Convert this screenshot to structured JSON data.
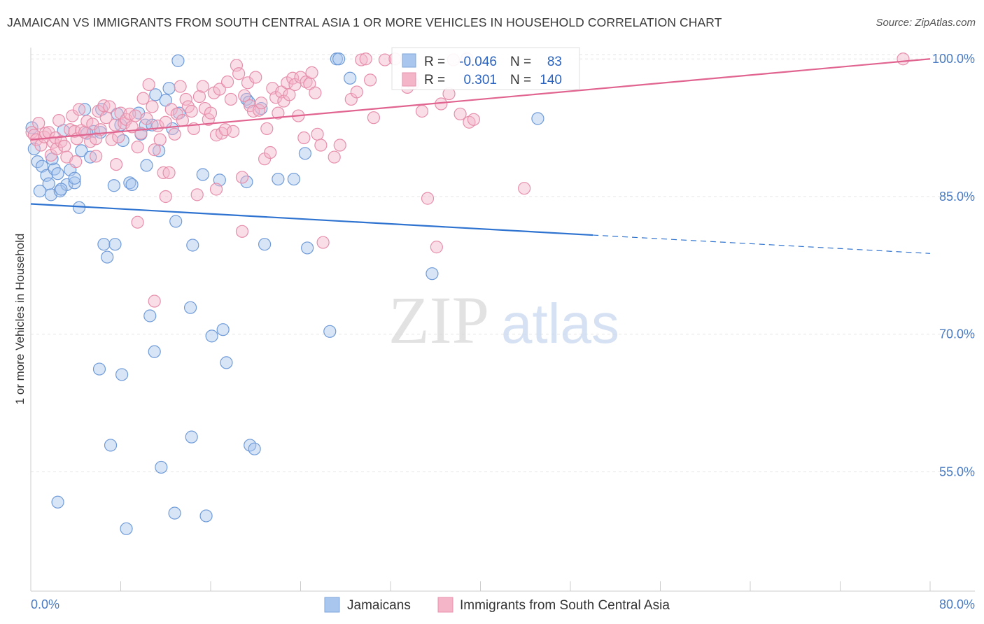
{
  "title": "JAMAICAN VS IMMIGRANTS FROM SOUTH CENTRAL ASIA 1 OR MORE VEHICLES IN HOUSEHOLD CORRELATION CHART",
  "source": "Source: ZipAtlas.com",
  "watermark": {
    "zip": "ZIP",
    "atlas": "atlas"
  },
  "colors": {
    "blue": "#2f73d0",
    "blue_fill": "#a9c6ee",
    "pink": "#e0648f",
    "pink_fill": "#f4b5c9",
    "tick": "#4a7bc2"
  },
  "legend": {
    "blue": {
      "r_label": "R =",
      "r_value": "-0.046",
      "n_label": "N =",
      "n_value": "83"
    },
    "pink": {
      "r_label": "R =",
      "r_value": "0.301",
      "n_label": "N =",
      "n_value": "140"
    }
  },
  "chart_data": {
    "type": "scatter",
    "title": "JAMAICAN VS IMMIGRANTS FROM SOUTH CENTRAL ASIA 1 OR MORE VEHICLES IN HOUSEHOLD CORRELATION CHART",
    "ylabel": "1 or more Vehicles in Household",
    "xlabel": "",
    "xlim": [
      0,
      80
    ],
    "ylim": [
      42,
      102
    ],
    "x_tick_labels": [
      "0.0%",
      "80.0%"
    ],
    "y_ticks": [
      55,
      70,
      85,
      100
    ],
    "y_tick_labels": [
      "55.0%",
      "70.0%",
      "85.0%",
      "100.0%"
    ],
    "grid": true,
    "legend_position": "bottom-center",
    "series": [
      {
        "name": "Jamaicans",
        "trend": {
          "x_start": 0,
          "y_start": 84.2,
          "x_solid_end": 50,
          "y_solid_end": 80.8,
          "x_end": 80,
          "y_end": 78.8
        },
        "points": [
          [
            0.1,
            92.5
          ],
          [
            0.3,
            90.2
          ],
          [
            0.6,
            88.8
          ],
          [
            0.8,
            85.6
          ],
          [
            1.0,
            88.3
          ],
          [
            1.4,
            87.3
          ],
          [
            1.8,
            85.2
          ],
          [
            2.1,
            88.0
          ],
          [
            2.4,
            87.5
          ],
          [
            2.6,
            85.6
          ],
          [
            2.9,
            92.2
          ],
          [
            3.2,
            86.3
          ],
          [
            3.5,
            87.9
          ],
          [
            3.9,
            86.5
          ],
          [
            4.3,
            83.8
          ],
          [
            4.5,
            90.0
          ],
          [
            4.8,
            94.5
          ],
          [
            5.3,
            89.3
          ],
          [
            5.6,
            92.1
          ],
          [
            6.2,
            92.0
          ],
          [
            6.3,
            94.5
          ],
          [
            6.5,
            79.8
          ],
          [
            6.8,
            78.4
          ],
          [
            7.4,
            86.2
          ],
          [
            7.5,
            79.8
          ],
          [
            7.7,
            94.0
          ],
          [
            8.0,
            92.8
          ],
          [
            8.2,
            91.1
          ],
          [
            8.8,
            86.5
          ],
          [
            9.0,
            86.3
          ],
          [
            9.6,
            94.1
          ],
          [
            9.8,
            91.8
          ],
          [
            10.2,
            92.8
          ],
          [
            10.3,
            88.4
          ],
          [
            10.6,
            72.0
          ],
          [
            10.8,
            92.8
          ],
          [
            11.0,
            68.1
          ],
          [
            11.1,
            96.1
          ],
          [
            11.4,
            90.0
          ],
          [
            11.6,
            55.5
          ],
          [
            12.0,
            95.5
          ],
          [
            12.3,
            96.8
          ],
          [
            12.6,
            92.4
          ],
          [
            12.8,
            50.5
          ],
          [
            12.9,
            82.3
          ],
          [
            13.1,
            99.8
          ],
          [
            13.2,
            94.1
          ],
          [
            14.2,
            72.9
          ],
          [
            14.3,
            58.8
          ],
          [
            14.4,
            79.7
          ],
          [
            15.3,
            87.4
          ],
          [
            15.6,
            50.2
          ],
          [
            16.1,
            69.8
          ],
          [
            16.8,
            86.8
          ],
          [
            17.1,
            70.5
          ],
          [
            17.4,
            66.9
          ],
          [
            19.2,
            86.6
          ],
          [
            19.2,
            95.6
          ],
          [
            19.4,
            95.3
          ],
          [
            19.5,
            57.9
          ],
          [
            19.9,
            57.5
          ],
          [
            20.5,
            94.6
          ],
          [
            20.8,
            79.8
          ],
          [
            22.0,
            86.9
          ],
          [
            23.4,
            86.9
          ],
          [
            24.4,
            89.7
          ],
          [
            24.6,
            79.4
          ],
          [
            26.6,
            70.3
          ],
          [
            27.2,
            100.0
          ],
          [
            27.4,
            100.0
          ],
          [
            28.4,
            97.9
          ],
          [
            35.7,
            76.6
          ],
          [
            45.1,
            93.5
          ],
          [
            3.9,
            87.0
          ],
          [
            8.1,
            65.6
          ],
          [
            6.1,
            66.2
          ],
          [
            2.4,
            51.7
          ],
          [
            7.1,
            57.9
          ],
          [
            8.5,
            48.8
          ],
          [
            1.6,
            86.4
          ],
          [
            1.9,
            89.1
          ],
          [
            2.7,
            85.8
          ],
          [
            5.0,
            91.9
          ]
        ]
      },
      {
        "name": "Immigrants from South Central Asia",
        "trend": {
          "x_start": 0,
          "y_start": 91.2,
          "x_end": 80,
          "y_end": 100.0
        },
        "points": [
          [
            0.1,
            92.0
          ],
          [
            0.3,
            91.7
          ],
          [
            0.5,
            91.2
          ],
          [
            0.7,
            93.0
          ],
          [
            0.9,
            90.6
          ],
          [
            1.2,
            91.5
          ],
          [
            1.3,
            91.9
          ],
          [
            1.6,
            92.0
          ],
          [
            1.8,
            89.5
          ],
          [
            2.0,
            90.9
          ],
          [
            2.2,
            91.4
          ],
          [
            2.3,
            90.2
          ],
          [
            2.5,
            93.3
          ],
          [
            2.7,
            91.0
          ],
          [
            3.0,
            90.5
          ],
          [
            3.2,
            89.3
          ],
          [
            3.5,
            92.3
          ],
          [
            3.7,
            93.8
          ],
          [
            3.9,
            92.1
          ],
          [
            4.1,
            91.3
          ],
          [
            4.3,
            94.5
          ],
          [
            4.5,
            92.2
          ],
          [
            4.8,
            92.0
          ],
          [
            5.0,
            93.2
          ],
          [
            5.3,
            91.0
          ],
          [
            5.5,
            92.9
          ],
          [
            5.8,
            89.4
          ],
          [
            6.0,
            94.3
          ],
          [
            6.2,
            92.3
          ],
          [
            6.5,
            94.9
          ],
          [
            6.7,
            93.6
          ],
          [
            7.0,
            94.8
          ],
          [
            7.2,
            91.2
          ],
          [
            7.5,
            92.8
          ],
          [
            7.8,
            91.5
          ],
          [
            8.0,
            94.1
          ],
          [
            8.3,
            93.0
          ],
          [
            8.5,
            93.4
          ],
          [
            8.8,
            94.0
          ],
          [
            9.0,
            92.6
          ],
          [
            9.3,
            93.8
          ],
          [
            9.5,
            90.4
          ],
          [
            9.8,
            91.9
          ],
          [
            10.0,
            95.7
          ],
          [
            10.3,
            93.5
          ],
          [
            10.5,
            97.2
          ],
          [
            10.8,
            94.8
          ],
          [
            11.0,
            90.1
          ],
          [
            11.3,
            92.7
          ],
          [
            11.5,
            91.2
          ],
          [
            11.8,
            87.6
          ],
          [
            12.0,
            93.1
          ],
          [
            12.3,
            87.6
          ],
          [
            12.5,
            94.5
          ],
          [
            12.8,
            91.8
          ],
          [
            13.0,
            94.0
          ],
          [
            13.3,
            97.0
          ],
          [
            13.5,
            93.3
          ],
          [
            13.8,
            95.6
          ],
          [
            14.0,
            94.8
          ],
          [
            14.3,
            94.3
          ],
          [
            14.5,
            92.4
          ],
          [
            14.8,
            85.2
          ],
          [
            15.0,
            95.9
          ],
          [
            15.3,
            97.0
          ],
          [
            15.5,
            94.6
          ],
          [
            15.8,
            93.4
          ],
          [
            16.0,
            94.1
          ],
          [
            16.3,
            96.3
          ],
          [
            16.5,
            91.7
          ],
          [
            16.8,
            96.7
          ],
          [
            17.0,
            91.9
          ],
          [
            17.3,
            92.3
          ],
          [
            17.5,
            97.5
          ],
          [
            17.8,
            95.6
          ],
          [
            18.0,
            92.1
          ],
          [
            18.3,
            99.3
          ],
          [
            18.5,
            98.4
          ],
          [
            18.8,
            81.2
          ],
          [
            19.0,
            96.0
          ],
          [
            19.3,
            97.4
          ],
          [
            19.5,
            94.9
          ],
          [
            19.8,
            94.3
          ],
          [
            20.0,
            98.0
          ],
          [
            20.3,
            94.4
          ],
          [
            20.5,
            95.2
          ],
          [
            20.8,
            89.1
          ],
          [
            21.0,
            92.4
          ],
          [
            21.3,
            89.8
          ],
          [
            21.5,
            96.8
          ],
          [
            21.8,
            95.8
          ],
          [
            22.0,
            94.1
          ],
          [
            22.3,
            96.4
          ],
          [
            22.5,
            95.4
          ],
          [
            22.8,
            97.4
          ],
          [
            23.0,
            96.1
          ],
          [
            23.3,
            97.9
          ],
          [
            23.5,
            97.2
          ],
          [
            23.8,
            93.8
          ],
          [
            24.0,
            98.0
          ],
          [
            24.3,
            91.4
          ],
          [
            24.5,
            97.5
          ],
          [
            24.8,
            97.3
          ],
          [
            25.0,
            98.5
          ],
          [
            25.3,
            96.3
          ],
          [
            25.5,
            91.8
          ],
          [
            25.8,
            90.6
          ],
          [
            26.0,
            80.0
          ],
          [
            27.0,
            89.3
          ],
          [
            27.5,
            90.6
          ],
          [
            28.5,
            95.6
          ],
          [
            29.0,
            96.4
          ],
          [
            29.4,
            99.9
          ],
          [
            29.8,
            100.0
          ],
          [
            30.2,
            97.7
          ],
          [
            30.5,
            93.6
          ],
          [
            31.5,
            99.9
          ],
          [
            32.4,
            100.0
          ],
          [
            33.5,
            96.9
          ],
          [
            34.0,
            97.3
          ],
          [
            34.8,
            94.3
          ],
          [
            35.3,
            84.8
          ],
          [
            36.1,
            79.5
          ],
          [
            36.5,
            95.1
          ],
          [
            37.2,
            96.2
          ],
          [
            37.6,
            99.9
          ],
          [
            38.2,
            94.0
          ],
          [
            39.0,
            93.1
          ],
          [
            39.4,
            93.4
          ],
          [
            38.8,
            100.0
          ],
          [
            43.9,
            85.9
          ],
          [
            77.6,
            100.0
          ],
          [
            11.0,
            73.6
          ],
          [
            9.5,
            82.2
          ],
          [
            18.8,
            87.1
          ],
          [
            16.5,
            85.8
          ],
          [
            12.0,
            85.0
          ],
          [
            7.6,
            88.5
          ],
          [
            4.0,
            88.8
          ],
          [
            5.8,
            91.3
          ]
        ]
      }
    ]
  }
}
